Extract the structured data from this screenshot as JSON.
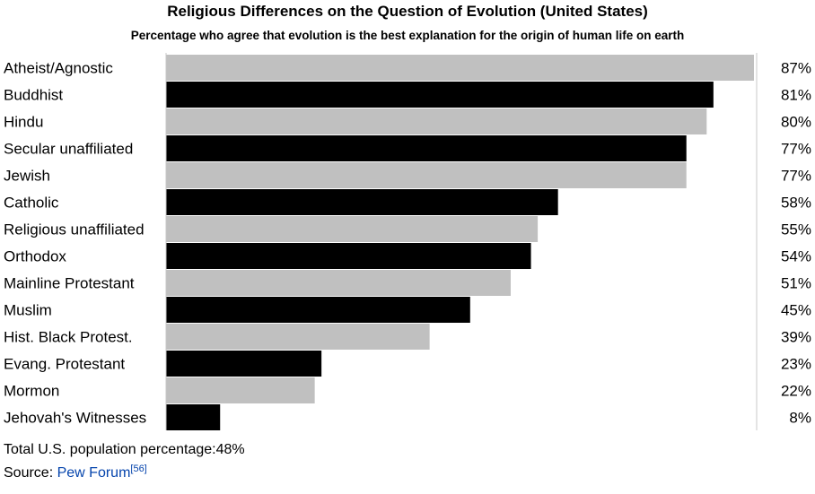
{
  "chart_data": {
    "type": "bar",
    "orientation": "horizontal",
    "title": "Religious Differences on the Question of Evolution (United States)",
    "subtitle": "Percentage who agree that evolution is the best explanation for the origin of human life on earth",
    "categories": [
      "Atheist/Agnostic",
      "Buddhist",
      "Hindu",
      "Secular unaffiliated",
      "Jewish",
      "Catholic",
      "Religious unaffiliated",
      "Orthodox",
      "Mainline Protestant",
      "Muslim",
      "Hist. Black Protest.",
      "Evang. Protestant",
      "Mormon",
      "Jehovah's Witnesses"
    ],
    "values": [
      87,
      81,
      80,
      77,
      77,
      58,
      55,
      54,
      51,
      45,
      39,
      23,
      22,
      8
    ],
    "value_labels": [
      "87%",
      "81%",
      "80%",
      "77%",
      "77%",
      "58%",
      "55%",
      "54%",
      "51%",
      "45%",
      "39%",
      "23%",
      "22%",
      "8%"
    ],
    "bar_colors": [
      "#c0c0c0",
      "#000000"
    ],
    "xlim": [
      0,
      87
    ],
    "grid": false,
    "legend": "none"
  },
  "footer": {
    "total_text": "Total U.S. population percentage:48%",
    "source_prefix": "Source: ",
    "source_link": "Pew Forum",
    "source_ref": "[56]"
  }
}
